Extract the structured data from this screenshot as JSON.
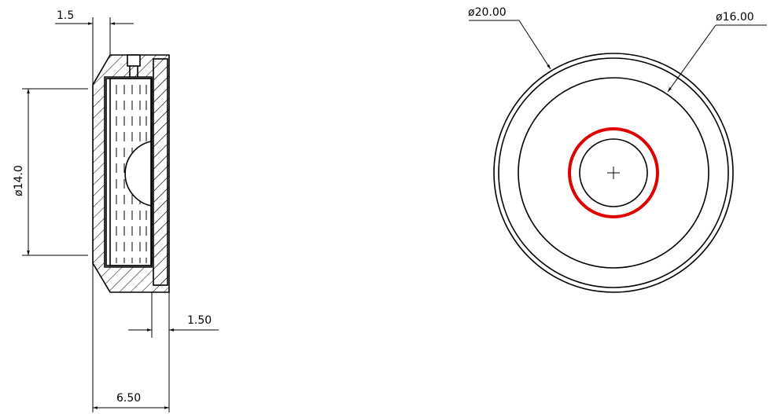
{
  "side_view": {
    "dim_top_width": "1.5",
    "dim_diameter": "ø14.0",
    "dim_plate_thickness": "1.50",
    "dim_overall_width": "6.50"
  },
  "front_view": {
    "dim_outer_diameter": "ø20.00",
    "dim_inner_diameter": "ø16.00"
  },
  "colors": {
    "line": "#000000",
    "highlight": "#e00000",
    "background": "#ffffff"
  }
}
